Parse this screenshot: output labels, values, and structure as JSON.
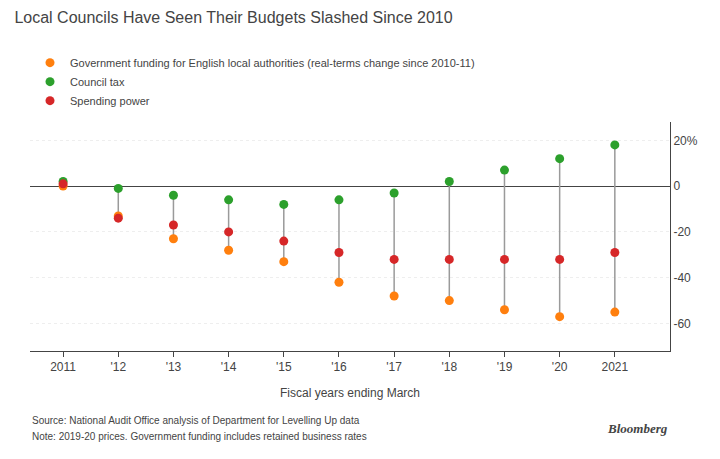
{
  "chart_data": {
    "type": "dot",
    "title": "Local Councils Have Seen Their Budgets Slashed Since 2010",
    "xlabel": "Fiscal years ending March",
    "annotations": [
      "Source: National Audit Office analysis of Department for Levelling Up data",
      "Note: 2019-20 prices. Government funding includes retained business rates",
      "Bloomberg"
    ],
    "x": [
      2011,
      2012,
      2013,
      2014,
      2015,
      2016,
      2017,
      2018,
      2019,
      2020,
      2021
    ],
    "series": [
      {
        "name": "Government funding for English local authorities (real-terms change since 2010-11)",
        "values": [
          0,
          -13,
          -23,
          -28,
          -33,
          -42,
          -48,
          -50,
          -54,
          -57,
          -55
        ]
      },
      {
        "name": "Council tax",
        "values": [
          2,
          -1,
          -4,
          -6,
          -8,
          -6,
          -3,
          2,
          7,
          12,
          18
        ]
      },
      {
        "name": "Spending power",
        "values": [
          1,
          -14,
          -17,
          -20,
          -24,
          -29,
          -32,
          -32,
          -32,
          -32,
          -29
        ]
      }
    ],
    "xlim": [
      2010.4,
      2022.0
    ],
    "xticks": [
      2011,
      {
        "value": 2012,
        "label": "'12"
      },
      {
        "value": 2013,
        "label": "'13"
      },
      {
        "value": 2014,
        "label": "'14"
      },
      {
        "value": 2015,
        "label": "'15"
      },
      {
        "value": 2016,
        "label": "'16"
      },
      {
        "value": 2017,
        "label": "'17"
      },
      {
        "value": 2018,
        "label": "'18"
      },
      {
        "value": 2019,
        "label": "'19"
      },
      {
        "value": 2020,
        "label": "'20"
      },
      2021
    ],
    "ylim": [
      -72,
      28
    ],
    "yticks": [
      -60,
      -40,
      -20,
      0,
      {
        "value": 20,
        "label": "20%"
      }
    ],
    "grid": true,
    "legend": "top"
  }
}
